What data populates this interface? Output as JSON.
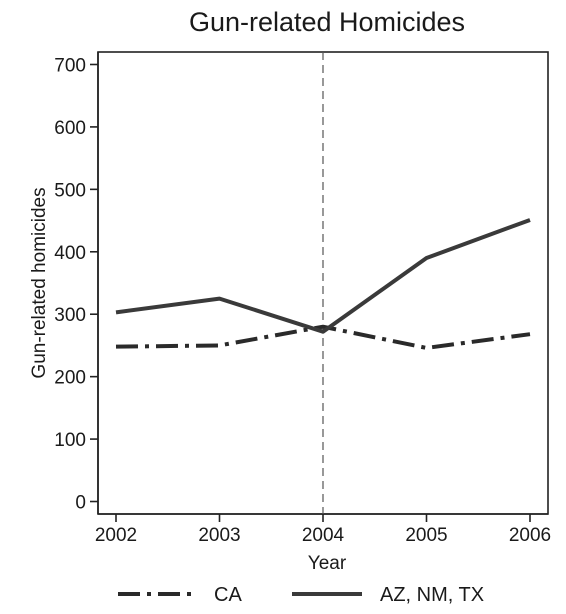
{
  "chart_data": {
    "type": "line",
    "title": "Gun-related Homicides",
    "xlabel": "Year",
    "ylabel": "Gun-related homicides",
    "x": [
      2002,
      2003,
      2004,
      2005,
      2006
    ],
    "x_tick_labels": [
      "2002",
      "2003",
      "2004",
      "2005",
      "2006"
    ],
    "ylim": [
      -20,
      720
    ],
    "y_ticks": [
      0,
      100,
      200,
      300,
      400,
      500,
      600,
      700
    ],
    "y_tick_labels": [
      "0",
      "100",
      "200",
      "300",
      "400",
      "500",
      "600",
      "700"
    ],
    "reference_line_x": 2004,
    "grid": false,
    "legend_position": "bottom",
    "series": [
      {
        "name": "CA",
        "style": "dash-dot",
        "color": "#2a2a2a",
        "values": [
          248,
          250,
          280,
          246,
          268
        ]
      },
      {
        "name": "AZ, NM, TX",
        "style": "solid",
        "color": "#3a3a3a",
        "values": [
          303,
          325,
          272,
          390,
          451
        ]
      }
    ]
  }
}
